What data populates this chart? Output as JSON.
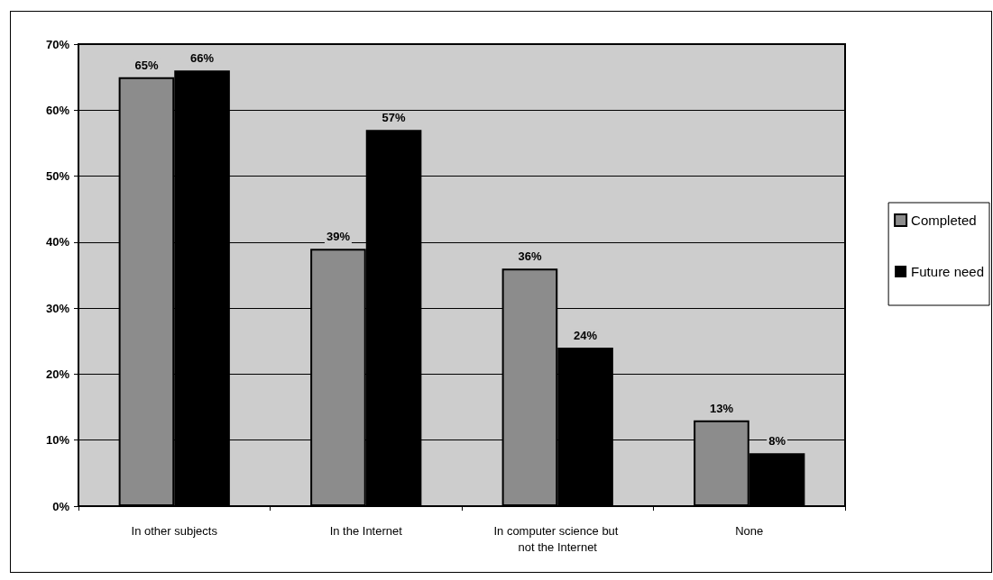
{
  "chart_data": {
    "type": "bar",
    "categories": [
      "In other subjects",
      "In the Internet",
      "In computer science but not the Internet",
      "None"
    ],
    "series": [
      {
        "name": "Completed",
        "color": "#8c8c8c",
        "values": [
          65,
          39,
          36,
          13
        ],
        "value_labels": [
          "65%",
          "39%",
          "36%",
          "13%"
        ]
      },
      {
        "name": "Future need",
        "color": "#000000",
        "values": [
          66,
          57,
          24,
          8
        ],
        "value_labels": [
          "66%",
          "57%",
          "24%",
          "8%"
        ]
      }
    ],
    "ylim": [
      0,
      70
    ],
    "yticks": [
      {
        "value": 0,
        "label": "0%"
      },
      {
        "value": 10,
        "label": "10%"
      },
      {
        "value": 20,
        "label": "20%"
      },
      {
        "value": 30,
        "label": "30%"
      },
      {
        "value": 40,
        "label": "40%"
      },
      {
        "value": 50,
        "label": "50%"
      },
      {
        "value": 60,
        "label": "60%"
      },
      {
        "value": 70,
        "label": "70%"
      }
    ],
    "grid": "y",
    "legend": "right"
  }
}
